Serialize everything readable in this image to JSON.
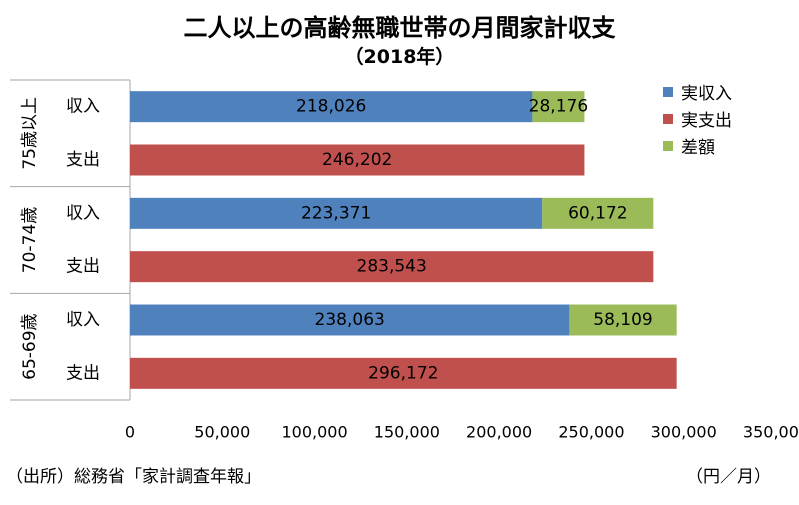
{
  "title": "二人以上の高齢無職世帯の月間家計収支",
  "subtitle": "（2018年）",
  "source": "（出所）総務省「家計調査年報」",
  "unit": "（円／月）",
  "colors": {
    "income": "#4f81bd",
    "expense": "#c0504d",
    "difference": "#9bbb59"
  },
  "chart_data": {
    "type": "bar",
    "orientation": "horizontal",
    "stacked": true,
    "xlim": [
      0,
      350000
    ],
    "x_ticks": [
      "0",
      "50,000",
      "100,000",
      "150,000",
      "200,000",
      "250,000",
      "300,000",
      "350,000"
    ],
    "legend": [
      "実収入",
      "実支出",
      "差額"
    ],
    "legend_position": "right",
    "groups": [
      {
        "label": "75歳以上",
        "rows": [
          {
            "label": "収入",
            "segments": [
              {
                "series": "実収入",
                "value": 218026,
                "label": "218,026"
              },
              {
                "series": "差額",
                "value": 28176,
                "label": "28,176"
              }
            ]
          },
          {
            "label": "支出",
            "segments": [
              {
                "series": "実支出",
                "value": 246202,
                "label": "246,202"
              }
            ]
          }
        ]
      },
      {
        "label": "70-74歳",
        "rows": [
          {
            "label": "収入",
            "segments": [
              {
                "series": "実収入",
                "value": 223371,
                "label": "223,371"
              },
              {
                "series": "差額",
                "value": 60172,
                "label": "60,172"
              }
            ]
          },
          {
            "label": "支出",
            "segments": [
              {
                "series": "実支出",
                "value": 283543,
                "label": "283,543"
              }
            ]
          }
        ]
      },
      {
        "label": "65-69歳",
        "rows": [
          {
            "label": "収入",
            "segments": [
              {
                "series": "実収入",
                "value": 238063,
                "label": "238,063"
              },
              {
                "series": "差額",
                "value": 58109,
                "label": "58,109"
              }
            ]
          },
          {
            "label": "支出",
            "segments": [
              {
                "series": "実支出",
                "value": 296172,
                "label": "296,172"
              }
            ]
          }
        ]
      }
    ]
  }
}
